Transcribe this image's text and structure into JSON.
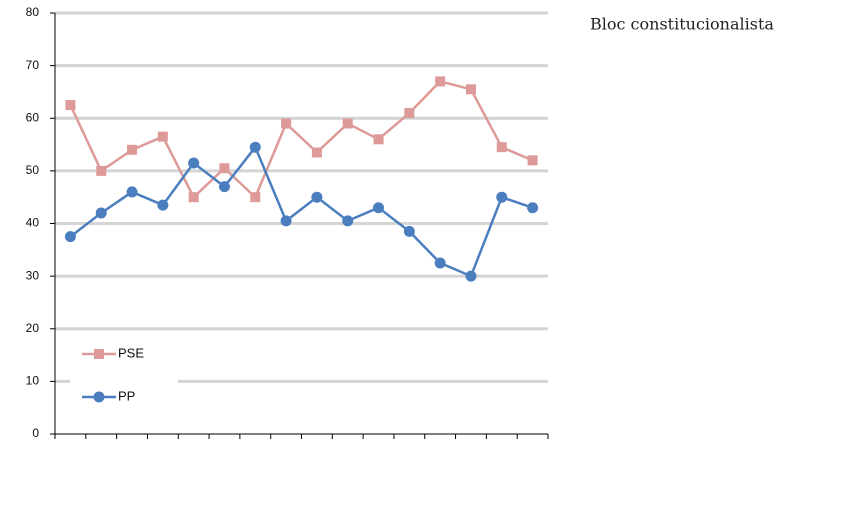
{
  "chart_data": {
    "type": "line",
    "title": "Bloc constitucionalista",
    "categories": [
      null,
      null,
      null,
      null,
      null,
      null,
      null,
      null,
      null,
      null,
      null,
      null,
      null,
      null,
      null,
      null
    ],
    "series": [
      {
        "name": "PSE",
        "color": "#dd9a98",
        "marker": "square",
        "values": [
          62.5,
          50,
          54,
          56.5,
          45,
          50.5,
          45,
          59,
          53.5,
          59,
          56,
          61,
          67,
          65.5,
          54.5,
          52
        ]
      },
      {
        "name": "PP",
        "color": "#4a7ebf",
        "marker": "circle",
        "values": [
          37.5,
          42,
          46,
          43.5,
          51.5,
          47,
          54.5,
          40.5,
          45,
          40.5,
          43,
          38.5,
          32.5,
          30,
          45,
          43
        ]
      }
    ],
    "ylim": [
      0,
      80
    ],
    "yticks": [
      0,
      10,
      20,
      30,
      40,
      50,
      60,
      70,
      80
    ],
    "grid": true,
    "legend": "lower left"
  }
}
